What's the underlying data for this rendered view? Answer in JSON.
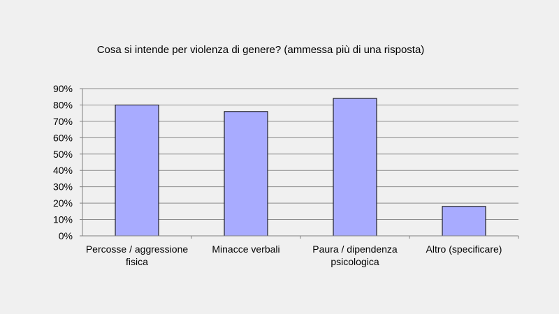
{
  "chart_data": {
    "type": "bar",
    "title": "Cosa si intende per violenza di genere? (ammessa più di una risposta)",
    "categories": [
      [
        "Percosse / aggressione",
        "fisica"
      ],
      [
        "Minacce verbali"
      ],
      [
        "Paura / dipendenza",
        "psicologica"
      ],
      [
        "Altro (specificare)"
      ]
    ],
    "values": [
      80,
      76,
      84,
      18
    ],
    "ylim": [
      0,
      90
    ],
    "yticks": [
      "0%",
      "10%",
      "20%",
      "30%",
      "40%",
      "50%",
      "60%",
      "70%",
      "80%",
      "90%"
    ],
    "grid": true,
    "colors": {
      "bar": "#a8abff",
      "bar_stroke": "#000000",
      "grid": "#8c8c8c",
      "axis": "#808080"
    }
  }
}
